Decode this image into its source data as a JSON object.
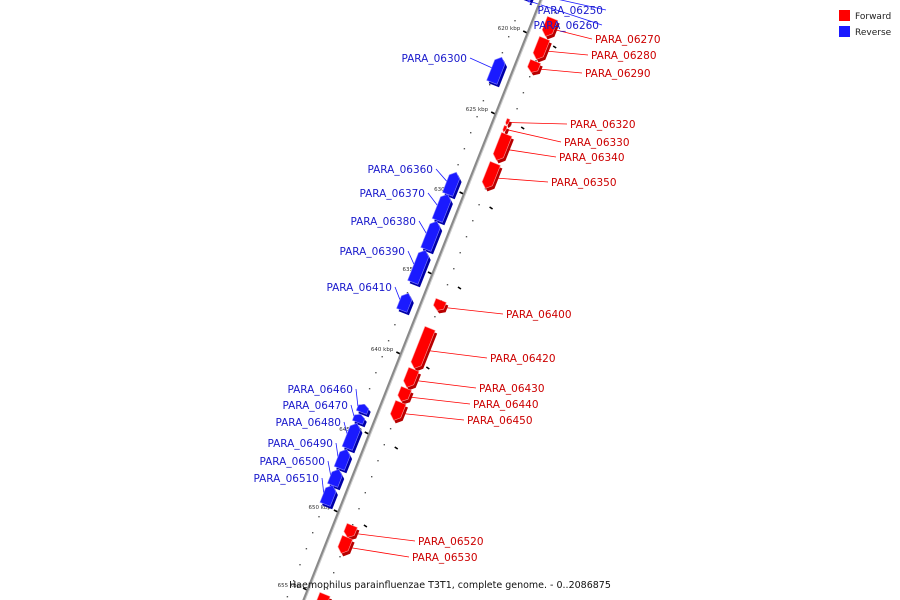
{
  "colors": {
    "forward": "#ff0000",
    "forward_dark": "#b80000",
    "forward_light": "#ff9a9a",
    "reverse": "#1a1aff",
    "reverse_dark": "#0000a8",
    "reverse_light": "#7f7fff",
    "backbone": "#8a8a8a",
    "forward_label": "#cc0000",
    "reverse_label": "#1a1acc"
  },
  "legend": [
    {
      "label": "Forward",
      "strand": "forward"
    },
    {
      "label": "Reverse",
      "strand": "reverse"
    }
  ],
  "caption": "Haemophilus parainfluenzae T3T1, complete genome. - 0..2086875",
  "ticks": [
    "620 kbp",
    "625 kbp",
    "630 kbp",
    "635 kbp",
    "640 kbp",
    "645 kbp",
    "650 kbp",
    "655 kbp"
  ],
  "genes": [
    {
      "id": "PARA_06250",
      "strand": "reverse"
    },
    {
      "id": "PARA_06260",
      "strand": "reverse"
    },
    {
      "id": "PARA_06270",
      "strand": "forward"
    },
    {
      "id": "PARA_06280",
      "strand": "forward"
    },
    {
      "id": "PARA_06290",
      "strand": "forward"
    },
    {
      "id": "PARA_06300",
      "strand": "reverse"
    },
    {
      "id": "PARA_06320",
      "strand": "forward"
    },
    {
      "id": "PARA_06330",
      "strand": "forward"
    },
    {
      "id": "PARA_06340",
      "strand": "forward"
    },
    {
      "id": "PARA_06350",
      "strand": "forward"
    },
    {
      "id": "PARA_06360",
      "strand": "reverse"
    },
    {
      "id": "PARA_06370",
      "strand": "reverse"
    },
    {
      "id": "PARA_06380",
      "strand": "reverse"
    },
    {
      "id": "PARA_06390",
      "strand": "reverse"
    },
    {
      "id": "PARA_06400",
      "strand": "forward"
    },
    {
      "id": "PARA_06410",
      "strand": "reverse"
    },
    {
      "id": "PARA_06420",
      "strand": "forward"
    },
    {
      "id": "PARA_06430",
      "strand": "forward"
    },
    {
      "id": "PARA_06440",
      "strand": "forward"
    },
    {
      "id": "PARA_06450",
      "strand": "forward"
    },
    {
      "id": "PARA_06460",
      "strand": "reverse"
    },
    {
      "id": "PARA_06470",
      "strand": "reverse"
    },
    {
      "id": "PARA_06480",
      "strand": "reverse"
    },
    {
      "id": "PARA_06490",
      "strand": "reverse"
    },
    {
      "id": "PARA_06500",
      "strand": "reverse"
    },
    {
      "id": "PARA_06510",
      "strand": "reverse"
    },
    {
      "id": "PARA_06520",
      "strand": "forward"
    },
    {
      "id": "PARA_06530",
      "strand": "forward"
    }
  ]
}
